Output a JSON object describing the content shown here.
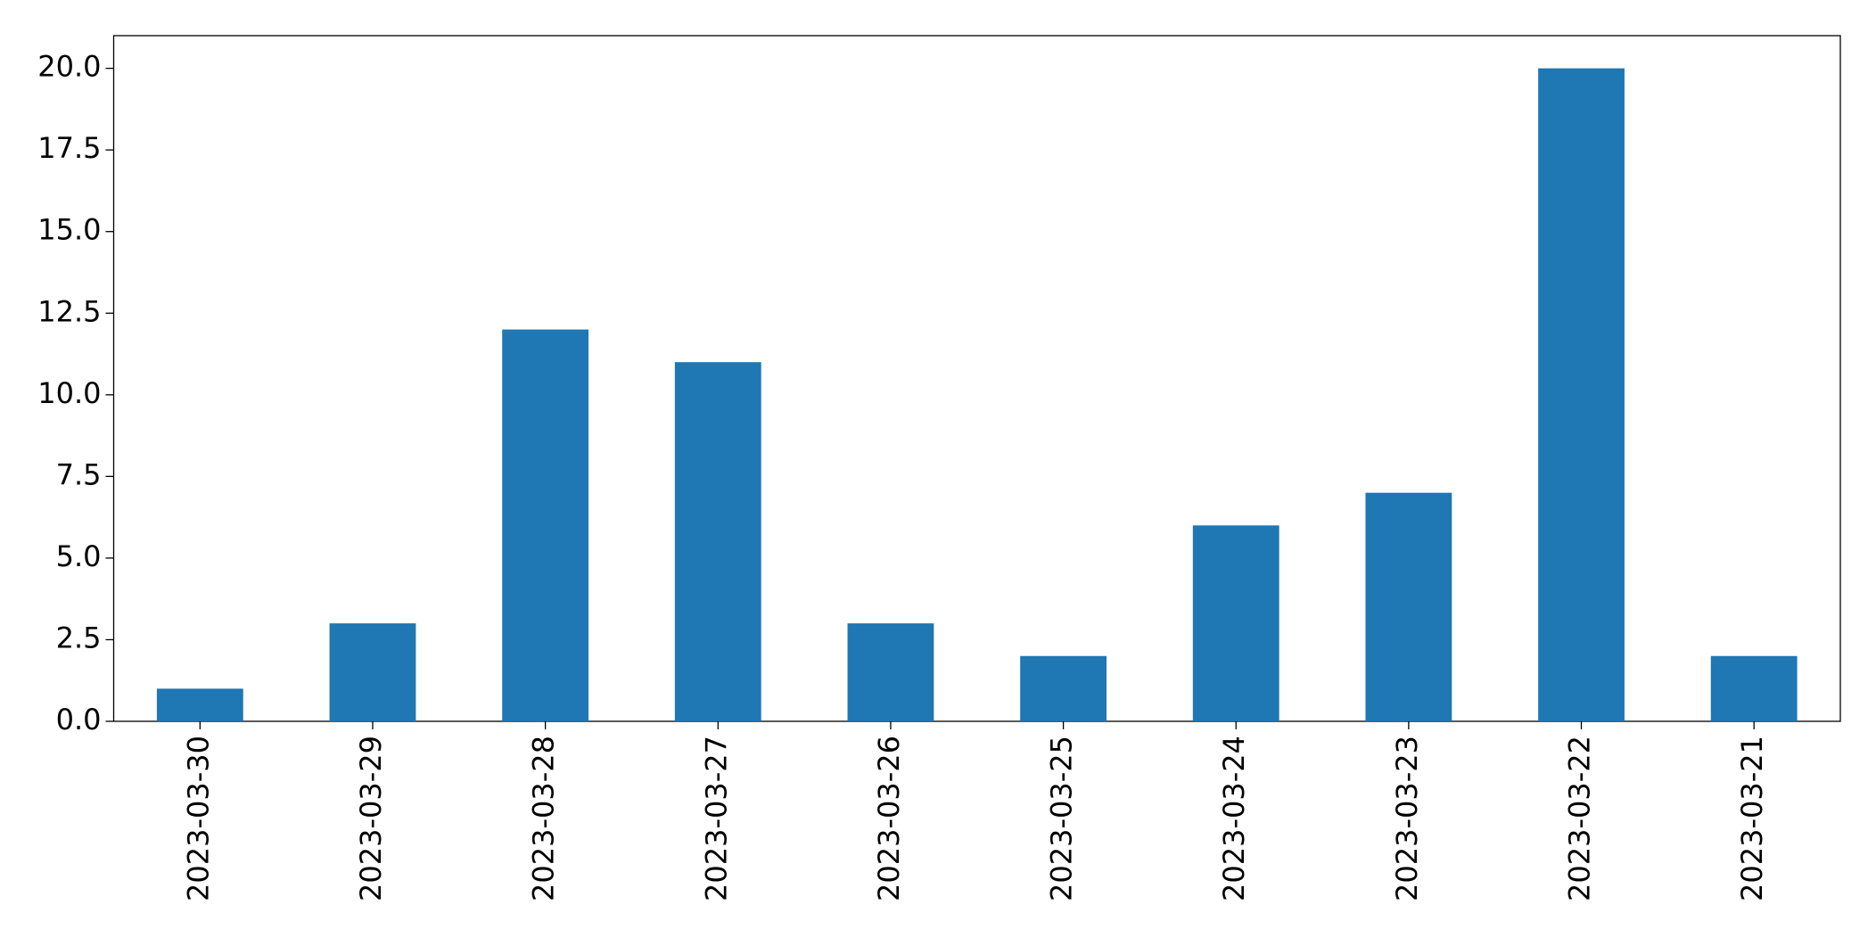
{
  "chart_data": {
    "type": "bar",
    "categories": [
      "2023-03-30",
      "2023-03-29",
      "2023-03-28",
      "2023-03-27",
      "2023-03-26",
      "2023-03-25",
      "2023-03-24",
      "2023-03-23",
      "2023-03-22",
      "2023-03-21"
    ],
    "values": [
      1,
      3,
      12,
      11,
      3,
      2,
      6,
      7,
      20,
      2
    ],
    "color": "#1f77b4",
    "ylim": [
      0,
      21
    ],
    "yticks": [
      {
        "value": 0,
        "label": "0.0"
      },
      2.5,
      {
        "value": 5,
        "label": "5.0"
      },
      7.5,
      {
        "value": 10,
        "label": "10.0"
      },
      12.5,
      {
        "value": 15,
        "label": "15.0"
      },
      17.5,
      {
        "value": 20,
        "label": "20.0"
      }
    ],
    "grid": false
  }
}
